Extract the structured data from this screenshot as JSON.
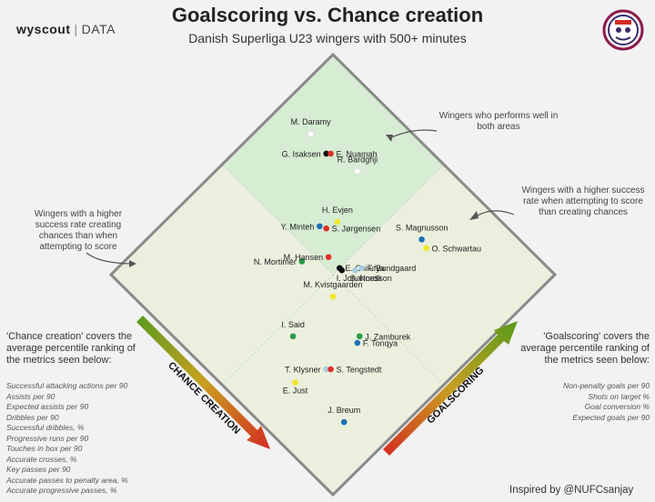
{
  "header": {
    "title": "Goalscoring vs. Chance creation",
    "subtitle": "Danish Superliga U23 wingers with 500+ minutes",
    "brand_name": "wyscout",
    "brand_divider": "|",
    "brand_suffix": "DATA"
  },
  "annotations": {
    "top": "Wingers who performs well in both areas",
    "left": "Wingers with a higher success rate creating chances than when attempting to score",
    "right": "Wingers with a higher success rate when attempting to score than creating chances"
  },
  "left_panel": {
    "description": "'Chance creation' covers the average percentile ranking of the metrics seen below:",
    "metrics": [
      "Successful attacking actions per 90",
      "Assists per 90",
      "Expected assists per 90",
      "Dribbles per 90",
      "Successful dribbles, %",
      "Progressive runs per 90",
      "Touches in box per 90",
      "Accurate crosses, %",
      "Key passes per 90",
      "Accurate passes to penalty area, %",
      "Accurate progressive passes, %"
    ]
  },
  "right_panel": {
    "description": "'Goalscoring' covers the average percentile ranking of the metrics seen below:",
    "metrics": [
      "Non-penalty goals per 90",
      "Shots on target %",
      "Goal conversion %",
      "Expected goals per 90"
    ]
  },
  "footer": {
    "credit": "Inspired by @NUFCsanjay"
  },
  "colors": {
    "background": "#f2f2f2",
    "plot_fill": "#eaf0dd",
    "top_zone_fill": "#d6ecd3",
    "border": "#8a8a8a",
    "grid": "#c8d4bb",
    "arrow_green": "#5a9a1e",
    "arrow_red": "#d42c22"
  },
  "chart_data": {
    "type": "scatter",
    "xlabel": "CHANCE CREATION",
    "ylabel": "GOALSCORING",
    "xlim": [
      0,
      100
    ],
    "ylim": [
      0,
      100
    ],
    "points": [
      {
        "name": "M. Daramy",
        "chance_creation": 87,
        "goalscoring": 77,
        "color": "#ffffff"
      },
      {
        "name": "G. Isaksen",
        "chance_creation": 79,
        "goalscoring": 76,
        "color": "#111111"
      },
      {
        "name": "E. Nuamah",
        "chance_creation": 78,
        "goalscoring": 77,
        "color": "#e0302a"
      },
      {
        "name": "R. Bardghji",
        "chance_creation": 68,
        "goalscoring": 79,
        "color": "#ffffff"
      },
      {
        "name": "H. Evjen",
        "chance_creation": 61,
        "goalscoring": 63,
        "color": "#f2e62a"
      },
      {
        "name": "Y. Minteh",
        "chance_creation": 64,
        "goalscoring": 58,
        "color": "#1f6fb5"
      },
      {
        "name": "S. Jørgensen",
        "chance_creation": 62,
        "goalscoring": 59,
        "color": "#e0302a"
      },
      {
        "name": "S. Magnusson",
        "chance_creation": 38,
        "goalscoring": 78,
        "color": "#1f6fb5"
      },
      {
        "name": "O. Schwartau",
        "chance_creation": 35,
        "goalscoring": 77,
        "color": "#f2e62a"
      },
      {
        "name": "N. Mortimer",
        "chance_creation": 60,
        "goalscoring": 46,
        "color": "#2a9a4a"
      },
      {
        "name": "M. Hansen",
        "chance_creation": 55,
        "goalscoring": 53,
        "color": "#e0302a"
      },
      {
        "name": "E. Chilufya",
        "chance_creation": 50,
        "goalscoring": 53,
        "color": "#111111"
      },
      {
        "name": "I. Johannesson",
        "chance_creation": 49,
        "goalscoring": 53,
        "color": "#111111"
      },
      {
        "name": "F. Bundgaard",
        "chance_creation": 45,
        "goalscoring": 58,
        "color": "#a9cde4"
      },
      {
        "name": "S. Nordli",
        "chance_creation": 46,
        "goalscoring": 56,
        "color": "#a9cde4"
      },
      {
        "name": "M. Kvistgaarden",
        "chance_creation": 45,
        "goalscoring": 45,
        "color": "#f2e62a"
      },
      {
        "name": "I. Said",
        "chance_creation": 45,
        "goalscoring": 27,
        "color": "#2a9a4a"
      },
      {
        "name": "J. Zamburek",
        "chance_creation": 30,
        "goalscoring": 42,
        "color": "#2a9a4a"
      },
      {
        "name": "F. Tonqya",
        "chance_creation": 29,
        "goalscoring": 40,
        "color": "#1f6fb5"
      },
      {
        "name": "T. Klysner",
        "chance_creation": 30,
        "goalscoring": 27,
        "color": "#a9cde4"
      },
      {
        "name": "S. Tengstedt",
        "chance_creation": 29,
        "goalscoring": 28,
        "color": "#e0302a"
      },
      {
        "name": "E. Just",
        "chance_creation": 34,
        "goalscoring": 17,
        "color": "#f2e62a"
      },
      {
        "name": "J. Breum",
        "chance_creation": 14,
        "goalscoring": 19,
        "color": "#1f6fb5"
      }
    ]
  }
}
